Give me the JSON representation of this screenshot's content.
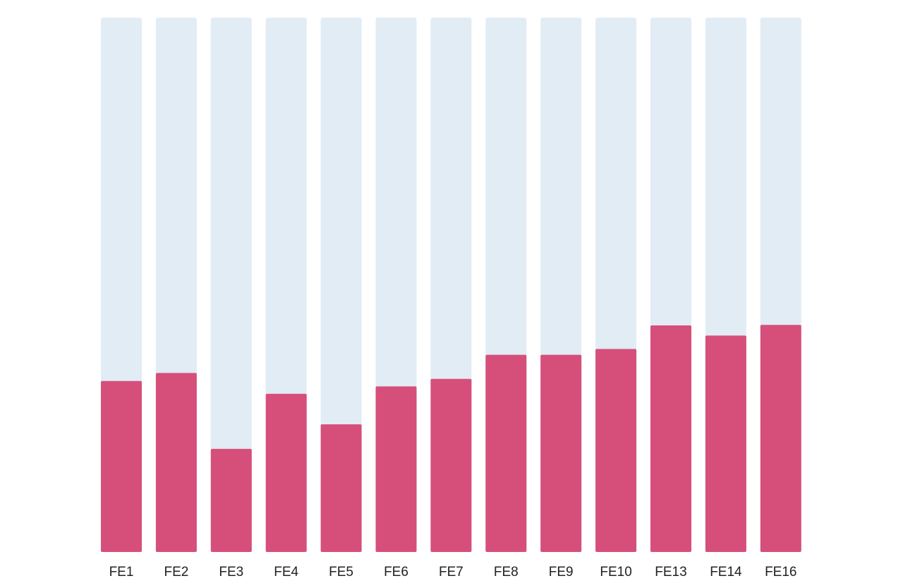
{
  "chart_data": {
    "type": "bar",
    "categories": [
      "FE1",
      "FE2",
      "FE3",
      "FE4",
      "FE5",
      "FE6",
      "FE7",
      "FE8",
      "FE9",
      "FE10",
      "FE13",
      "FE14",
      "FE16"
    ],
    "values": [
      0.32,
      0.335,
      0.193,
      0.296,
      0.239,
      0.31,
      0.324,
      0.369,
      0.369,
      0.38,
      0.424,
      0.405,
      0.425
    ],
    "ylim": [
      0,
      1
    ],
    "grid": false,
    "legend": "none",
    "title": "",
    "xlabel": "",
    "ylabel": "",
    "colors": {
      "bar": "#d64f7a",
      "track": "#e1ecf5",
      "label": "#222222"
    }
  }
}
